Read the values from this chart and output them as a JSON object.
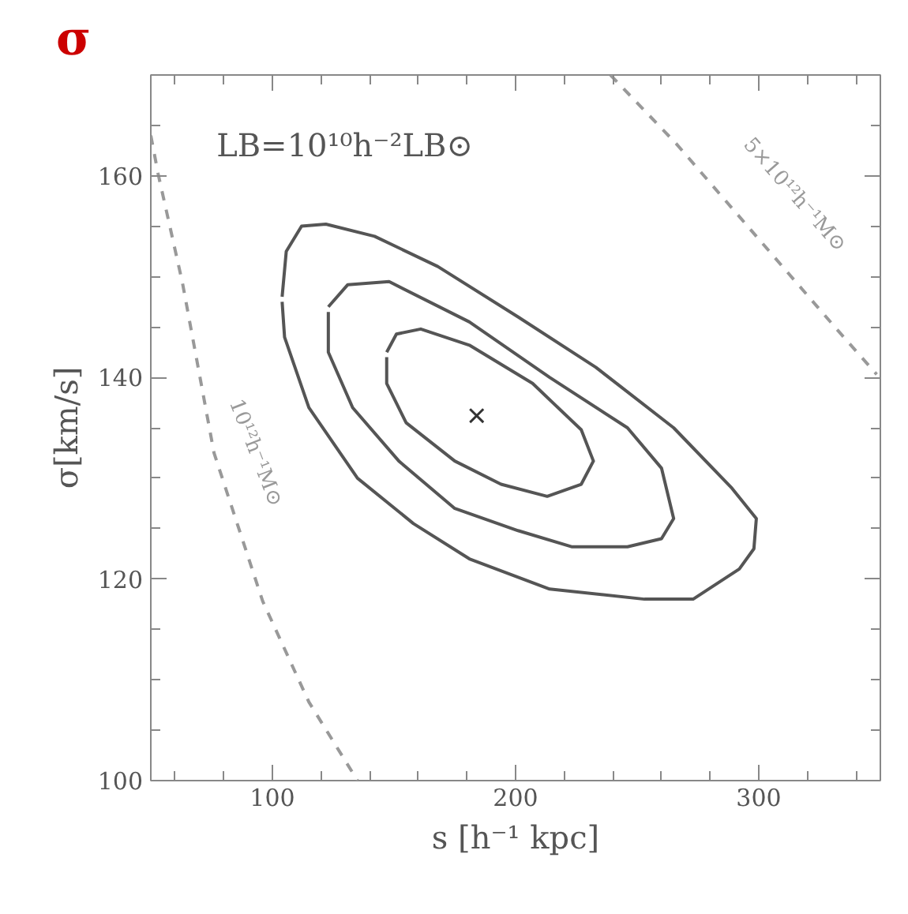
{
  "chart_data": {
    "type": "line",
    "title": "σ",
    "xlabel": "s [h⁻¹ kpc]",
    "ylabel": "σ[km/s]",
    "xlim": [
      50,
      350
    ],
    "ylim": [
      100,
      170
    ],
    "xticks": [
      {
        "value": 60,
        "label": null
      },
      {
        "value": 80,
        "label": null
      },
      100,
      {
        "value": 120,
        "label": null
      },
      {
        "value": 140,
        "label": null
      },
      {
        "value": 160,
        "label": null
      },
      {
        "value": 180,
        "label": null
      },
      200,
      {
        "value": 220,
        "label": null
      },
      {
        "value": 240,
        "label": null
      },
      {
        "value": 260,
        "label": null
      },
      {
        "value": 280,
        "label": null
      },
      300,
      {
        "value": 320,
        "label": null
      },
      {
        "value": 340,
        "label": null
      }
    ],
    "yticks": [
      100,
      {
        "value": 105,
        "label": null
      },
      {
        "value": 110,
        "label": null
      },
      {
        "value": 115,
        "label": null
      },
      120,
      {
        "value": 125,
        "label": null
      },
      {
        "value": 130,
        "label": null
      },
      {
        "value": 135,
        "label": null
      },
      140,
      {
        "value": 145,
        "label": null
      },
      {
        "value": 150,
        "label": null
      },
      {
        "value": 155,
        "label": null
      },
      160,
      {
        "value": 165,
        "label": null
      }
    ],
    "grid": false,
    "legend": false,
    "line_style": "solid",
    "marker": "none",
    "series": [
      {
        "color": "#555555",
        "x": [
          104,
          105.7,
          112,
          122,
          142,
          168,
          201,
          233,
          265,
          289,
          299,
          298,
          292,
          273,
          253,
          214,
          181,
          158,
          135,
          115,
          105,
          104
        ],
        "values": [
          148,
          152.5,
          155,
          155.2,
          154,
          151,
          146,
          141,
          135,
          129,
          126,
          123,
          121,
          118,
          118,
          119,
          122,
          125.5,
          130,
          137,
          144,
          147.5
        ]
      },
      {
        "color": "#555555",
        "x": [
          123,
          131,
          148,
          181,
          214,
          246,
          260,
          265,
          260,
          246,
          223,
          201,
          175,
          152,
          133,
          123,
          123
        ],
        "values": [
          147,
          149.2,
          149.5,
          145.5,
          140,
          135,
          131,
          126,
          124,
          123.2,
          123.2,
          124.8,
          127,
          131.7,
          137,
          142.5,
          146.5
        ]
      },
      {
        "color": "#555555",
        "x": [
          147,
          151,
          161,
          181,
          207,
          227,
          232,
          227,
          213,
          194,
          175,
          155,
          147,
          147
        ],
        "values": [
          142.5,
          144.3,
          144.8,
          143.2,
          139.4,
          134.8,
          131.7,
          129.4,
          128.2,
          129.4,
          131.7,
          135.5,
          139.4,
          142
        ]
      },
      {
        "type": "scatter",
        "marker": "cross",
        "color": "#333333",
        "x": [
          184
        ],
        "values": [
          136.2
        ]
      },
      {
        "name": "10¹²h⁻¹M⊙",
        "color": "#999999",
        "line_style": "dashed",
        "x": [
          50,
          53,
          63,
          76,
          96,
          115,
          135
        ],
        "values": [
          164,
          160.2,
          149.4,
          132.5,
          117.8,
          107.8,
          100
        ]
      },
      {
        "name": "5×10¹²h⁻¹M⊙",
        "color": "#999999",
        "line_style": "dashed",
        "x": [
          239,
          266,
          299,
          332,
          348.5
        ],
        "values": [
          170,
          163.2,
          154,
          144.8,
          140.3
        ]
      }
    ],
    "annotations": [
      "LB=10¹⁰h⁻²LB⊙"
    ]
  }
}
